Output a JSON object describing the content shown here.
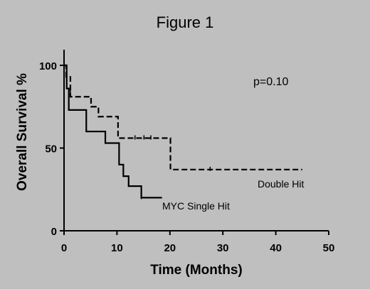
{
  "chart_data": {
    "type": "line",
    "title": "Figure 1",
    "xlabel": "Time (Months)",
    "ylabel": "Overall Survival %",
    "xlim": [
      0,
      50
    ],
    "ylim": [
      0,
      100
    ],
    "xticks": [
      "0",
      "10",
      "20",
      "30",
      "40",
      "50"
    ],
    "yticks": [
      "0",
      "50",
      "100"
    ],
    "grid": false,
    "annotation": "p=0.10",
    "series": [
      {
        "name": "MYC Single Hit",
        "style": "solid",
        "steps": [
          [
            0,
            100
          ],
          [
            0.5,
            86
          ],
          [
            0.9,
            73
          ],
          [
            4.2,
            60
          ],
          [
            7.8,
            53
          ],
          [
            10.4,
            40
          ],
          [
            11.2,
            33
          ],
          [
            12.2,
            27
          ],
          [
            14.6,
            20
          ],
          [
            18.5,
            20
          ]
        ],
        "censored": [
          [
            14.6,
            20
          ]
        ]
      },
      {
        "name": "Double Hit",
        "style": "dashed",
        "steps": [
          [
            0,
            100
          ],
          [
            0.4,
            93
          ],
          [
            1.2,
            81
          ],
          [
            5.1,
            75
          ],
          [
            6.5,
            69
          ],
          [
            10.2,
            56
          ],
          [
            20.1,
            37
          ],
          [
            45,
            37
          ]
        ],
        "censored": [
          [
            1.2,
            84
          ],
          [
            13.4,
            56
          ],
          [
            15.1,
            56
          ],
          [
            16.4,
            56
          ],
          [
            27.6,
            37
          ]
        ]
      }
    ]
  }
}
